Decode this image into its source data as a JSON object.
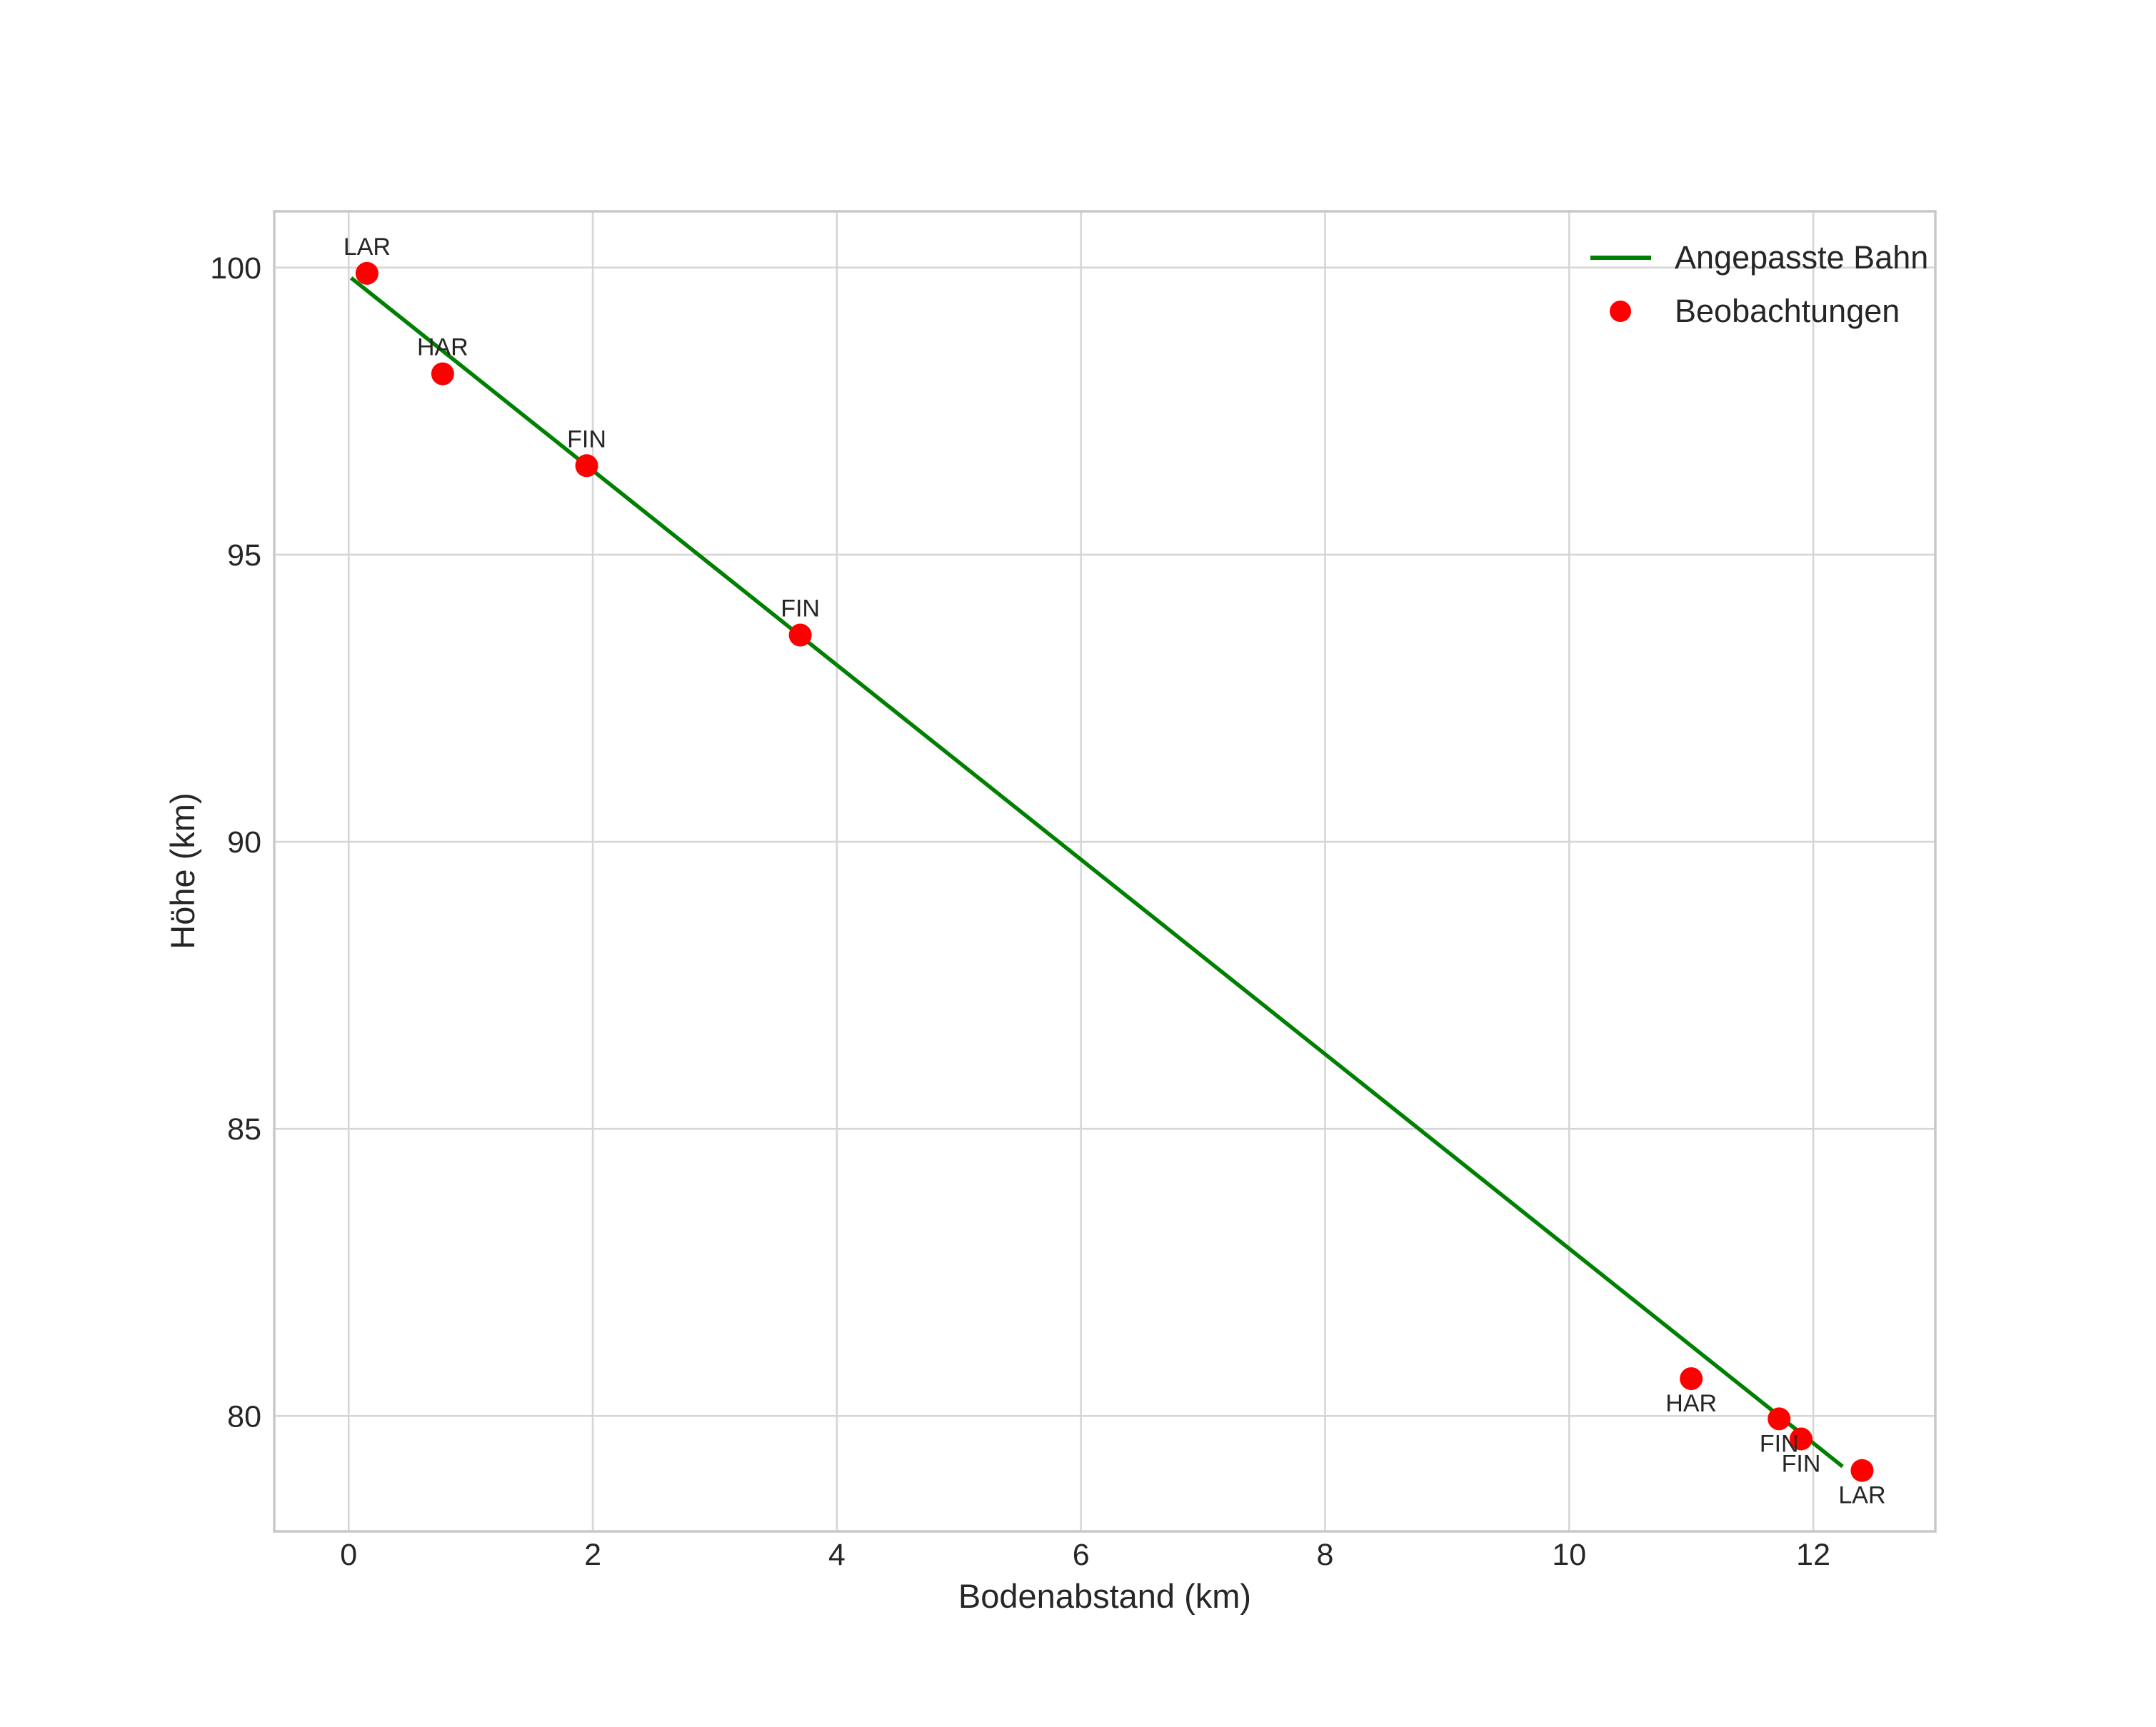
{
  "chart_data": {
    "type": "scatter",
    "title": "",
    "xlabel": "Bodenabstand (km)",
    "ylabel": "Höhe (km)",
    "xlim": [
      -0.61,
      13.0
    ],
    "ylim": [
      77.99,
      100.98
    ],
    "xticks": [
      0,
      2,
      4,
      6,
      8,
      10,
      12
    ],
    "yticks": [
      80,
      85,
      90,
      95,
      100
    ],
    "grid": true,
    "background": "#ffffff",
    "grid_color": "#d6d6d6",
    "spine_color": "#c8c8c8",
    "text_color": "#262626",
    "legend": {
      "position": "upper right",
      "frame": false,
      "entries": [
        {
          "label": "Angepasste Bahn",
          "type": "line",
          "color": "#008000"
        },
        {
          "label": "Beobachtungen",
          "type": "marker",
          "color": "#ff0000"
        }
      ]
    },
    "series": [
      {
        "name": "Angepasste Bahn",
        "type": "line",
        "color": "#008000",
        "points": [
          [
            0.02,
            99.82
          ],
          [
            12.24,
            79.12
          ]
        ]
      },
      {
        "name": "Beobachtungen",
        "type": "scatter",
        "color": "#ff0000",
        "points": [
          {
            "x": 0.15,
            "y": 99.9,
            "label": "LAR",
            "label_pos": "above"
          },
          {
            "x": 0.77,
            "y": 98.15,
            "label": "HAR",
            "label_pos": "above"
          },
          {
            "x": 1.95,
            "y": 96.55,
            "label": "FIN",
            "label_pos": "above"
          },
          {
            "x": 3.7,
            "y": 93.6,
            "label": "FIN",
            "label_pos": "above"
          },
          {
            "x": 11.0,
            "y": 80.65,
            "label": "HAR",
            "label_pos": "below"
          },
          {
            "x": 11.72,
            "y": 79.95,
            "label": "FIN",
            "label_pos": "below"
          },
          {
            "x": 11.9,
            "y": 79.6,
            "label": "FIN",
            "label_pos": "below"
          },
          {
            "x": 12.4,
            "y": 79.05,
            "label": "LAR",
            "label_pos": "below"
          }
        ]
      }
    ]
  }
}
